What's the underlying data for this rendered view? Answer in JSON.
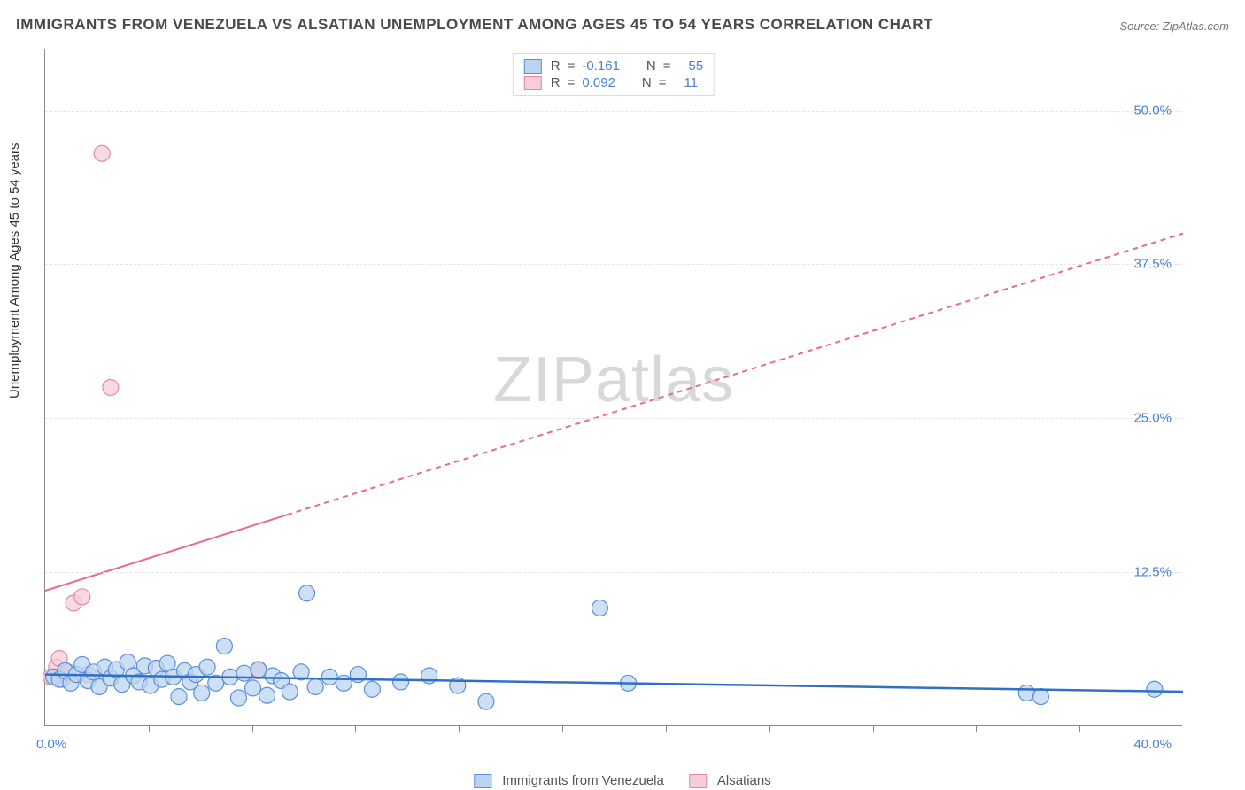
{
  "title": "IMMIGRANTS FROM VENEZUELA VS ALSATIAN UNEMPLOYMENT AMONG AGES 45 TO 54 YEARS CORRELATION CHART",
  "source": "Source: ZipAtlas.com",
  "y_axis_label": "Unemployment Among Ages 45 to 54 years",
  "watermark_a": "ZIP",
  "watermark_b": "atlas",
  "chart": {
    "type": "scatter",
    "xlim": [
      0,
      40
    ],
    "ylim": [
      0,
      55
    ],
    "x_ticks": [
      3.64,
      7.27,
      10.91,
      14.55,
      18.18,
      21.82,
      25.45,
      29.09,
      32.73,
      36.36
    ],
    "y_gridlines": [
      12.5,
      25.0,
      37.5,
      50.0
    ],
    "x_min_label": "0.0%",
    "x_max_label": "40.0%",
    "y_tick_labels": [
      "12.5%",
      "25.0%",
      "37.5%",
      "50.0%"
    ],
    "background_color": "#ffffff",
    "grid_color": "#e4e4e4",
    "axis_color": "#888888",
    "tick_label_color": "#4a7fd6",
    "series": [
      {
        "name": "Immigrants from Venezuela",
        "marker_fill": "#bcd4f0",
        "marker_stroke": "#5a8fd6",
        "marker_r": 9,
        "line_color": "#2f6fc9",
        "line_width": 2.5,
        "line_dash": "none",
        "trend": {
          "x1": 0,
          "y1": 4.2,
          "x2": 40,
          "y2": 2.8
        },
        "points": [
          [
            0.3,
            4.0
          ],
          [
            0.5,
            3.8
          ],
          [
            0.7,
            4.5
          ],
          [
            0.9,
            3.5
          ],
          [
            1.1,
            4.2
          ],
          [
            1.3,
            5.0
          ],
          [
            1.5,
            3.7
          ],
          [
            1.7,
            4.4
          ],
          [
            1.9,
            3.2
          ],
          [
            2.1,
            4.8
          ],
          [
            2.3,
            3.9
          ],
          [
            2.5,
            4.6
          ],
          [
            2.7,
            3.4
          ],
          [
            2.9,
            5.2
          ],
          [
            3.1,
            4.1
          ],
          [
            3.3,
            3.6
          ],
          [
            3.5,
            4.9
          ],
          [
            3.7,
            3.3
          ],
          [
            3.9,
            4.7
          ],
          [
            4.1,
            3.8
          ],
          [
            4.3,
            5.1
          ],
          [
            4.5,
            4.0
          ],
          [
            4.7,
            2.4
          ],
          [
            4.9,
            4.5
          ],
          [
            5.1,
            3.6
          ],
          [
            5.3,
            4.2
          ],
          [
            5.5,
            2.7
          ],
          [
            5.7,
            4.8
          ],
          [
            6.0,
            3.5
          ],
          [
            6.3,
            6.5
          ],
          [
            6.5,
            4.0
          ],
          [
            6.8,
            2.3
          ],
          [
            7.0,
            4.3
          ],
          [
            7.3,
            3.1
          ],
          [
            7.5,
            4.6
          ],
          [
            7.8,
            2.5
          ],
          [
            8.0,
            4.1
          ],
          [
            8.3,
            3.7
          ],
          [
            8.6,
            2.8
          ],
          [
            9.0,
            4.4
          ],
          [
            9.2,
            10.8
          ],
          [
            9.5,
            3.2
          ],
          [
            10.0,
            4.0
          ],
          [
            10.5,
            3.5
          ],
          [
            11.0,
            4.2
          ],
          [
            11.5,
            3.0
          ],
          [
            12.5,
            3.6
          ],
          [
            13.5,
            4.1
          ],
          [
            14.5,
            3.3
          ],
          [
            15.5,
            2.0
          ],
          [
            19.5,
            9.6
          ],
          [
            20.5,
            3.5
          ],
          [
            34.5,
            2.7
          ],
          [
            35.0,
            2.4
          ],
          [
            39.0,
            3.0
          ]
        ]
      },
      {
        "name": "Alsatians",
        "marker_fill": "#f6cdd9",
        "marker_stroke": "#e4899f",
        "marker_r": 9,
        "line_color": "#ea6a8a",
        "line_width": 2,
        "line_dash": "6,5",
        "trend_solid_until": 8.5,
        "trend": {
          "x1": 0,
          "y1": 11.0,
          "x2": 40,
          "y2": 40.0
        },
        "points": [
          [
            0.2,
            4.0
          ],
          [
            0.4,
            4.8
          ],
          [
            0.5,
            5.5
          ],
          [
            0.6,
            3.8
          ],
          [
            0.8,
            4.4
          ],
          [
            1.0,
            10.0
          ],
          [
            1.3,
            10.5
          ],
          [
            1.5,
            4.2
          ],
          [
            2.0,
            46.5
          ],
          [
            2.3,
            27.5
          ],
          [
            7.5,
            4.5
          ]
        ]
      }
    ]
  },
  "legend_top": {
    "rows": [
      {
        "swatch_fill": "#bcd4f0",
        "swatch_stroke": "#5a8fd6",
        "r_label": "R",
        "r_val": "-0.161",
        "n_label": "N",
        "n_val": "55"
      },
      {
        "swatch_fill": "#f6cdd9",
        "swatch_stroke": "#e4899f",
        "r_label": "R",
        "r_val": "0.092",
        "n_label": "N",
        "n_val": "11"
      }
    ]
  },
  "legend_bottom": {
    "items": [
      {
        "swatch_fill": "#bcd4f0",
        "swatch_stroke": "#5a8fd6",
        "label": "Immigrants from Venezuela"
      },
      {
        "swatch_fill": "#f6cdd9",
        "swatch_stroke": "#e4899f",
        "label": "Alsatians"
      }
    ]
  }
}
